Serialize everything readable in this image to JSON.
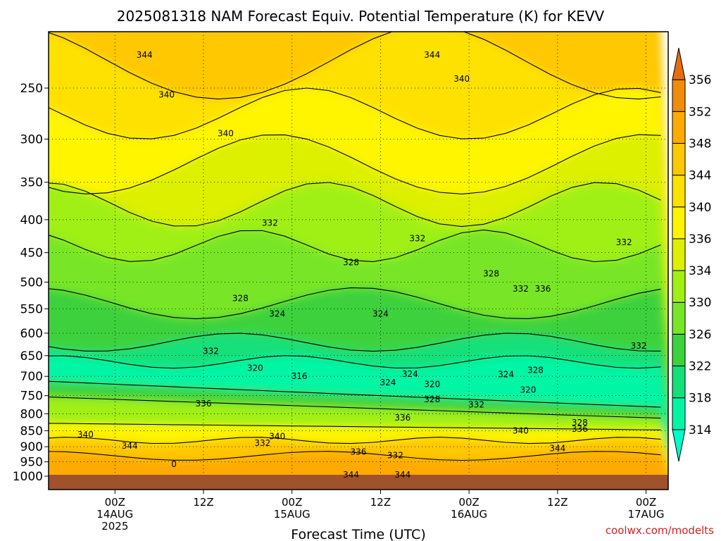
{
  "chart_data": {
    "type": "heatmap",
    "title": "2025081318 NAM Forecast Equiv. Potential Temperature (K) for KEVV",
    "xlabel": "Forecast Time (UTC)",
    "ylabel": "",
    "x_range_hours": [
      -9,
      75
    ],
    "x_ticks": [
      {
        "hour": 0,
        "lines": [
          "00Z",
          "14AUG",
          "2025"
        ]
      },
      {
        "hour": 12,
        "lines": [
          "12Z"
        ]
      },
      {
        "hour": 24,
        "lines": [
          "00Z",
          "15AUG"
        ]
      },
      {
        "hour": 36,
        "lines": [
          "12Z"
        ]
      },
      {
        "hour": 48,
        "lines": [
          "00Z",
          "16AUG"
        ]
      },
      {
        "hour": 60,
        "lines": [
          "12Z"
        ]
      },
      {
        "hour": 72,
        "lines": [
          "00Z",
          "17AUG"
        ]
      }
    ],
    "y_axis": "pressure (hPa)",
    "y_range_hpa": [
      1000,
      200
    ],
    "y_ticks": [
      250,
      300,
      350,
      400,
      450,
      500,
      550,
      600,
      650,
      700,
      750,
      800,
      850,
      900,
      950,
      1000
    ],
    "colorbar": {
      "levels": [
        314,
        318,
        322,
        326,
        330,
        334,
        336,
        340,
        344,
        348,
        352,
        356
      ],
      "colors": [
        "#00ffc8",
        "#00f5a5",
        "#14e07a",
        "#3cd23c",
        "#78e628",
        "#a0f014",
        "#dcf000",
        "#fff500",
        "#ffe100",
        "#ffc800",
        "#ffaa00",
        "#f08c0a",
        "#e66e0f"
      ]
    },
    "contour_labels": [
      {
        "hour": 4,
        "hpa": 222,
        "text": "344"
      },
      {
        "hour": 43,
        "hpa": 222,
        "text": "344"
      },
      {
        "hour": 47,
        "hpa": 242,
        "text": "340"
      },
      {
        "hour": 7,
        "hpa": 256,
        "text": "340"
      },
      {
        "hour": 15,
        "hpa": 294,
        "text": "340"
      },
      {
        "hour": 21,
        "hpa": 405,
        "text": "332"
      },
      {
        "hour": 41,
        "hpa": 428,
        "text": "332"
      },
      {
        "hour": 69,
        "hpa": 434,
        "text": "332"
      },
      {
        "hour": 32,
        "hpa": 466,
        "text": "328"
      },
      {
        "hour": 51,
        "hpa": 485,
        "text": "328"
      },
      {
        "hour": 55,
        "hpa": 512,
        "text": "332"
      },
      {
        "hour": 58,
        "hpa": 512,
        "text": "336"
      },
      {
        "hour": 17,
        "hpa": 530,
        "text": "328"
      },
      {
        "hour": 22,
        "hpa": 560,
        "text": "324"
      },
      {
        "hour": 36,
        "hpa": 560,
        "text": "324"
      },
      {
        "hour": 13,
        "hpa": 640,
        "text": "332"
      },
      {
        "hour": 71,
        "hpa": 628,
        "text": "332"
      },
      {
        "hour": 19,
        "hpa": 680,
        "text": "320"
      },
      {
        "hour": 25,
        "hpa": 700,
        "text": "316"
      },
      {
        "hour": 40,
        "hpa": 694,
        "text": "324"
      },
      {
        "hour": 37,
        "hpa": 716,
        "text": "324"
      },
      {
        "hour": 43,
        "hpa": 720,
        "text": "320"
      },
      {
        "hour": 53,
        "hpa": 695,
        "text": "324"
      },
      {
        "hour": 57,
        "hpa": 685,
        "text": "328"
      },
      {
        "hour": 56,
        "hpa": 735,
        "text": "320"
      },
      {
        "hour": 43,
        "hpa": 760,
        "text": "328"
      },
      {
        "hour": 12,
        "hpa": 772,
        "text": "336"
      },
      {
        "hour": 49,
        "hpa": 775,
        "text": "332"
      },
      {
        "hour": 39,
        "hpa": 812,
        "text": "336"
      },
      {
        "hour": 63,
        "hpa": 826,
        "text": "328"
      },
      {
        "hour": 63,
        "hpa": 845,
        "text": "336"
      },
      {
        "hour": 55,
        "hpa": 850,
        "text": "340"
      },
      {
        "hour": 22,
        "hpa": 868,
        "text": "340"
      },
      {
        "hour": 20,
        "hpa": 888,
        "text": "332"
      },
      {
        "hour": -4,
        "hpa": 862,
        "text": "340"
      },
      {
        "hour": 2,
        "hpa": 898,
        "text": "344"
      },
      {
        "hour": 33,
        "hpa": 917,
        "text": "336"
      },
      {
        "hour": 38,
        "hpa": 928,
        "text": "332"
      },
      {
        "hour": 60,
        "hpa": 905,
        "text": "344"
      },
      {
        "hour": 8,
        "hpa": 958,
        "text": "0"
      },
      {
        "hour": 32,
        "hpa": 995,
        "text": "344"
      },
      {
        "hour": 39,
        "hpa": 995,
        "text": "344"
      }
    ],
    "credit": "coolwx.com/modelts",
    "grid": true,
    "legend": "colorbar right"
  }
}
